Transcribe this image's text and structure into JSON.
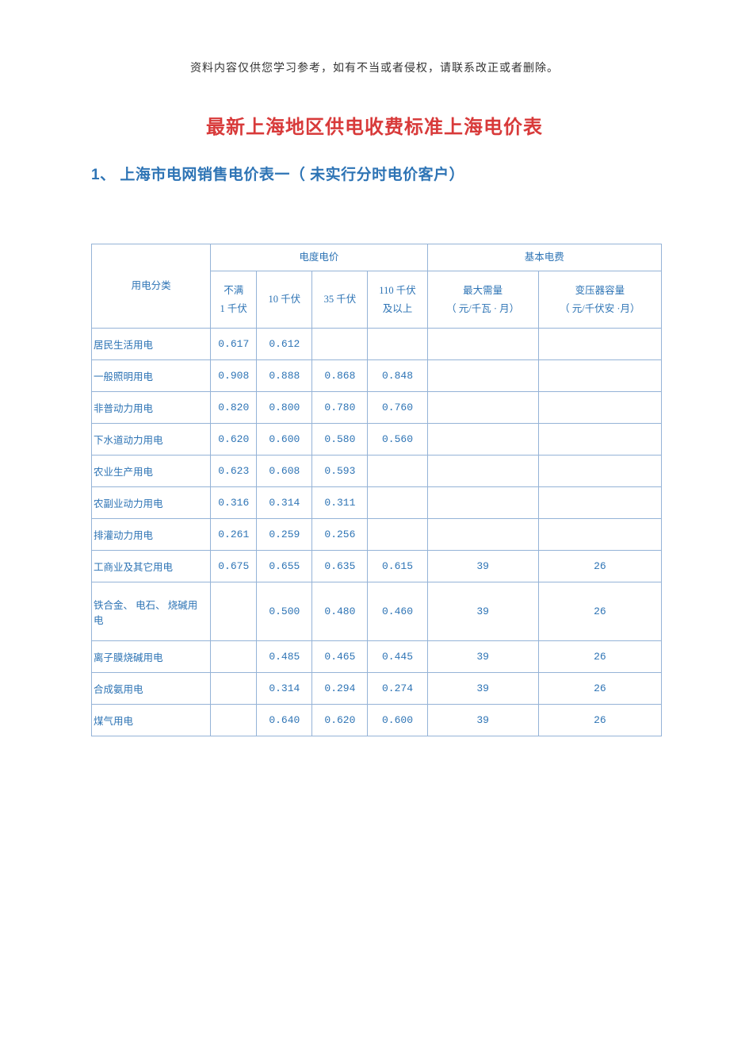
{
  "disclaimer": "资料内容仅供您学习参考，如有不当或者侵权，请联系改正或者删除。",
  "main_title": "最新上海地区供电收费标准上海电价表",
  "sub_title": "1、 上海市电网销售电价表一（ 未实行分时电价客户）",
  "table": {
    "header": {
      "category": "用电分类",
      "energy_group": "电度电价",
      "basic_group": "基本电费",
      "col_v1_l1": "不满",
      "col_v1_l2": "1 千伏",
      "col_v2": "10 千伏",
      "col_v3": "35 千伏",
      "col_v4_l1": "110 千伏",
      "col_v4_l2": "及以上",
      "col_b1_l1": "最大需量",
      "col_b1_l2": "（ 元/千瓦 · 月）",
      "col_b2_l1": "变压器容量",
      "col_b2_l2": "（ 元/千伏安 ·月）"
    },
    "rows": [
      {
        "cat": "居民生活用电",
        "v1": "0.617",
        "v2": "0.612",
        "v3": "",
        "v4": "",
        "b1": "",
        "b2": "",
        "tall": false
      },
      {
        "cat": "一般照明用电",
        "v1": "0.908",
        "v2": "0.888",
        "v3": "0.868",
        "v4": "0.848",
        "b1": "",
        "b2": "",
        "tall": false
      },
      {
        "cat": "非普动力用电",
        "v1": "0.820",
        "v2": "0.800",
        "v3": "0.780",
        "v4": "0.760",
        "b1": "",
        "b2": "",
        "tall": false
      },
      {
        "cat": "下水道动力用电",
        "v1": "0.620",
        "v2": "0.600",
        "v3": "0.580",
        "v4": "0.560",
        "b1": "",
        "b2": "",
        "tall": false
      },
      {
        "cat": "农业生产用电",
        "v1": "0.623",
        "v2": "0.608",
        "v3": "0.593",
        "v4": "",
        "b1": "",
        "b2": "",
        "tall": false
      },
      {
        "cat": "农副业动力用电",
        "v1": "0.316",
        "v2": "0.314",
        "v3": "0.311",
        "v4": "",
        "b1": "",
        "b2": "",
        "tall": false
      },
      {
        "cat": "排灌动力用电",
        "v1": "0.261",
        "v2": "0.259",
        "v3": "0.256",
        "v4": "",
        "b1": "",
        "b2": "",
        "tall": false
      },
      {
        "cat": "工商业及其它用电",
        "v1": "0.675",
        "v2": "0.655",
        "v3": "0.635",
        "v4": "0.615",
        "b1": "39",
        "b2": "26",
        "tall": false
      },
      {
        "cat": "铁合金、 电石、 烧碱用电",
        "v1": "",
        "v2": "0.500",
        "v3": "0.480",
        "v4": "0.460",
        "b1": "39",
        "b2": "26",
        "tall": true
      },
      {
        "cat": "离子膜烧碱用电",
        "v1": "",
        "v2": "0.485",
        "v3": "0.465",
        "v4": "0.445",
        "b1": "39",
        "b2": "26",
        "tall": false
      },
      {
        "cat": "合成氨用电",
        "v1": "",
        "v2": "0.314",
        "v3": "0.294",
        "v4": "0.274",
        "b1": "39",
        "b2": "26",
        "tall": false
      },
      {
        "cat": "煤气用电",
        "v1": "",
        "v2": "0.640",
        "v3": "0.620",
        "v4": "0.600",
        "b1": "39",
        "b2": "26",
        "tall": false
      }
    ]
  },
  "colors": {
    "title_red": "#d83a3a",
    "text_blue": "#2e74b5",
    "border_blue": "#95b3d7",
    "background": "#ffffff"
  }
}
